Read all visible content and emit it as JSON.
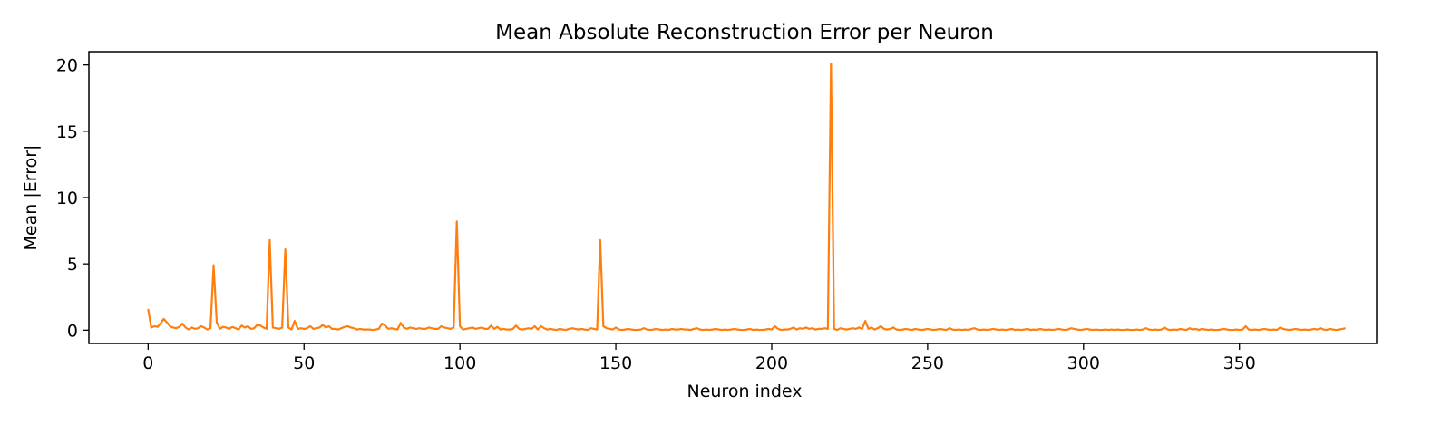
{
  "chart_data": {
    "type": "line",
    "title": "Mean Absolute Reconstruction Error per Neuron",
    "xlabel": "Neuron index",
    "ylabel": "Mean |Error|",
    "xlim": [
      -19,
      394
    ],
    "ylim": [
      -1.0,
      21.0
    ],
    "xticks": [
      0,
      50,
      100,
      150,
      200,
      250,
      300,
      350
    ],
    "yticks": [
      0,
      5,
      10,
      15,
      20
    ],
    "grid": false,
    "legend": "none",
    "series": [
      {
        "color": "#ff7f0e",
        "x_start": 0,
        "x_step": 1,
        "values": [
          1.6,
          0.2,
          0.3,
          0.25,
          0.5,
          0.85,
          0.6,
          0.3,
          0.2,
          0.15,
          0.25,
          0.5,
          0.2,
          0.05,
          0.2,
          0.1,
          0.15,
          0.3,
          0.2,
          0.05,
          0.15,
          4.9,
          0.6,
          0.1,
          0.25,
          0.2,
          0.1,
          0.25,
          0.15,
          0.05,
          0.35,
          0.2,
          0.3,
          0.1,
          0.15,
          0.4,
          0.35,
          0.2,
          0.1,
          6.8,
          0.2,
          0.15,
          0.1,
          0.2,
          6.1,
          0.2,
          0.05,
          0.7,
          0.1,
          0.15,
          0.1,
          0.15,
          0.3,
          0.1,
          0.15,
          0.2,
          0.4,
          0.2,
          0.3,
          0.1,
          0.1,
          0.05,
          0.15,
          0.25,
          0.3,
          0.2,
          0.15,
          0.05,
          0.1,
          0.05,
          0.05,
          0.05,
          0.02,
          0.05,
          0.1,
          0.5,
          0.35,
          0.1,
          0.15,
          0.1,
          0.05,
          0.55,
          0.2,
          0.1,
          0.2,
          0.15,
          0.1,
          0.15,
          0.1,
          0.1,
          0.2,
          0.15,
          0.1,
          0.1,
          0.3,
          0.2,
          0.15,
          0.1,
          0.2,
          8.2,
          0.3,
          0.05,
          0.1,
          0.15,
          0.2,
          0.1,
          0.15,
          0.2,
          0.1,
          0.1,
          0.35,
          0.1,
          0.25,
          0.05,
          0.1,
          0.05,
          0.05,
          0.1,
          0.35,
          0.1,
          0.05,
          0.1,
          0.15,
          0.1,
          0.3,
          0.05,
          0.3,
          0.15,
          0.05,
          0.1,
          0.05,
          0.02,
          0.1,
          0.05,
          0.02,
          0.1,
          0.15,
          0.1,
          0.05,
          0.1,
          0.05,
          0.02,
          0.15,
          0.1,
          0.05,
          6.8,
          0.3,
          0.15,
          0.1,
          0.05,
          0.2,
          0.05,
          0.02,
          0.05,
          0.1,
          0.05,
          0.02,
          0.02,
          0.05,
          0.15,
          0.05,
          0.02,
          0.05,
          0.1,
          0.05,
          0.02,
          0.05,
          0.02,
          0.1,
          0.05,
          0.05,
          0.1,
          0.05,
          0.05,
          0.02,
          0.1,
          0.15,
          0.05,
          0.02,
          0.05,
          0.02,
          0.05,
          0.1,
          0.05,
          0.02,
          0.05,
          0.02,
          0.05,
          0.1,
          0.05,
          0.02,
          0.02,
          0.05,
          0.1,
          0.02,
          0.05,
          0.02,
          0.02,
          0.05,
          0.1,
          0.05,
          0.3,
          0.1,
          0.02,
          0.05,
          0.05,
          0.1,
          0.2,
          0.05,
          0.15,
          0.1,
          0.2,
          0.1,
          0.15,
          0.05,
          0.1,
          0.1,
          0.15,
          0.1,
          20.1,
          0.1,
          0.02,
          0.15,
          0.1,
          0.05,
          0.1,
          0.15,
          0.1,
          0.2,
          0.1,
          0.7,
          0.1,
          0.2,
          0.05,
          0.15,
          0.3,
          0.1,
          0.05,
          0.1,
          0.2,
          0.05,
          0.02,
          0.05,
          0.1,
          0.05,
          0.02,
          0.1,
          0.05,
          0.02,
          0.05,
          0.1,
          0.05,
          0.02,
          0.05,
          0.1,
          0.05,
          0.02,
          0.15,
          0.05,
          0.02,
          0.05,
          0.02,
          0.05,
          0.02,
          0.1,
          0.15,
          0.05,
          0.02,
          0.05,
          0.02,
          0.05,
          0.1,
          0.05,
          0.02,
          0.05,
          0.02,
          0.05,
          0.1,
          0.02,
          0.05,
          0.02,
          0.05,
          0.1,
          0.02,
          0.05,
          0.02,
          0.1,
          0.05,
          0.02,
          0.05,
          0.02,
          0.05,
          0.1,
          0.05,
          0.02,
          0.05,
          0.15,
          0.1,
          0.05,
          0.02,
          0.05,
          0.1,
          0.05,
          0.02,
          0.05,
          0.02,
          0.02,
          0.05,
          0.02,
          0.05,
          0.02,
          0.05,
          0.02,
          0.02,
          0.05,
          0.02,
          0.02,
          0.05,
          0.02,
          0.05,
          0.15,
          0.05,
          0.02,
          0.05,
          0.02,
          0.05,
          0.2,
          0.05,
          0.02,
          0.05,
          0.02,
          0.1,
          0.05,
          0.02,
          0.15,
          0.05,
          0.1,
          0.02,
          0.1,
          0.05,
          0.02,
          0.05,
          0.02,
          0.02,
          0.05,
          0.1,
          0.05,
          0.02,
          0.02,
          0.05,
          0.02,
          0.05,
          0.3,
          0.05,
          0.02,
          0.05,
          0.02,
          0.05,
          0.1,
          0.05,
          0.02,
          0.05,
          0.02,
          0.2,
          0.1,
          0.05,
          0.02,
          0.05,
          0.1,
          0.05,
          0.02,
          0.05,
          0.02,
          0.05,
          0.1,
          0.05,
          0.15,
          0.05,
          0.02,
          0.1,
          0.05,
          0.02,
          0.05,
          0.1,
          0.15
        ]
      }
    ]
  }
}
